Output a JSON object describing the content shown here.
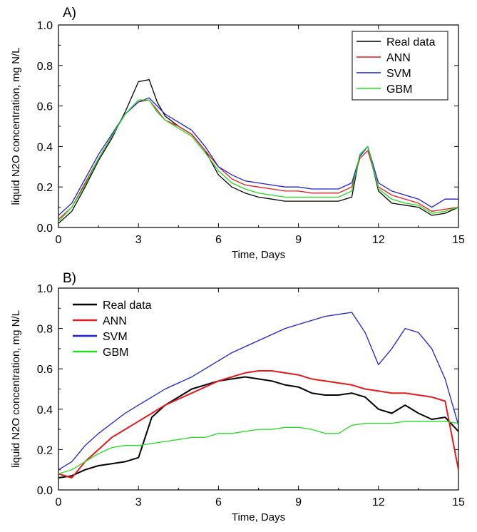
{
  "chart_data": [
    {
      "panel": "A)",
      "type": "line",
      "xlabel": "Time, Days",
      "ylabel": "liquid N2O concentration, mg N/L",
      "xlim": [
        0,
        15
      ],
      "ylim": [
        0,
        1.0
      ],
      "xticks": [
        "0",
        "3",
        "6",
        "9",
        "12",
        "15"
      ],
      "yticks": [
        "0.0",
        "0.2",
        "0.4",
        "0.6",
        "0.8",
        "1.0"
      ],
      "legend_position": "top-right",
      "series": [
        {
          "name": "Real data",
          "color": "#000000",
          "x": [
            0,
            0.5,
            1,
            1.5,
            2,
            2.5,
            3,
            3.4,
            3.7,
            4,
            4.5,
            5,
            5.5,
            6,
            6.5,
            7,
            7.5,
            8,
            8.5,
            9,
            9.5,
            10,
            10.5,
            11,
            11.3,
            11.6,
            12,
            12.5,
            13,
            13.5,
            14,
            14.5,
            15
          ],
          "y": [
            0.02,
            0.08,
            0.2,
            0.33,
            0.44,
            0.57,
            0.72,
            0.73,
            0.62,
            0.55,
            0.5,
            0.46,
            0.38,
            0.26,
            0.2,
            0.17,
            0.15,
            0.14,
            0.13,
            0.13,
            0.13,
            0.13,
            0.13,
            0.15,
            0.36,
            0.4,
            0.18,
            0.12,
            0.11,
            0.1,
            0.06,
            0.07,
            0.1
          ]
        },
        {
          "name": "ANN",
          "color": "#e41a1c",
          "x": [
            0,
            0.5,
            1,
            1.5,
            2,
            2.5,
            3,
            3.4,
            3.7,
            4,
            4.5,
            5,
            5.5,
            6,
            6.5,
            7,
            7.5,
            8,
            8.5,
            9,
            9.5,
            10,
            10.5,
            11,
            11.3,
            11.6,
            12,
            12.5,
            13,
            13.5,
            14,
            14.5,
            15
          ],
          "y": [
            0.04,
            0.1,
            0.22,
            0.34,
            0.45,
            0.56,
            0.62,
            0.63,
            0.58,
            0.53,
            0.5,
            0.46,
            0.38,
            0.3,
            0.24,
            0.21,
            0.2,
            0.19,
            0.18,
            0.18,
            0.17,
            0.17,
            0.17,
            0.2,
            0.34,
            0.38,
            0.2,
            0.16,
            0.14,
            0.12,
            0.08,
            0.09,
            0.1
          ]
        },
        {
          "name": "SVM",
          "color": "#1f1fcf",
          "x": [
            0,
            0.5,
            1,
            1.5,
            2,
            2.5,
            3,
            3.4,
            3.7,
            4,
            4.5,
            5,
            5.5,
            6,
            6.5,
            7,
            7.5,
            8,
            8.5,
            9,
            9.5,
            10,
            10.5,
            11,
            11.3,
            11.6,
            12,
            12.5,
            13,
            13.5,
            14,
            14.5,
            15
          ],
          "y": [
            0.06,
            0.12,
            0.24,
            0.36,
            0.46,
            0.56,
            0.62,
            0.64,
            0.6,
            0.56,
            0.52,
            0.48,
            0.4,
            0.3,
            0.26,
            0.23,
            0.22,
            0.21,
            0.2,
            0.2,
            0.19,
            0.19,
            0.19,
            0.22,
            0.35,
            0.4,
            0.22,
            0.18,
            0.16,
            0.14,
            0.1,
            0.14,
            0.14
          ]
        },
        {
          "name": "GBM",
          "color": "#22dd22",
          "x": [
            0,
            0.5,
            1,
            1.5,
            2,
            2.5,
            3,
            3.4,
            3.7,
            4,
            4.5,
            5,
            5.5,
            6,
            6.5,
            7,
            7.5,
            8,
            8.5,
            9,
            9.5,
            10,
            10.5,
            11,
            11.3,
            11.6,
            12,
            12.5,
            13,
            13.5,
            14,
            14.5,
            15
          ],
          "y": [
            0.03,
            0.1,
            0.21,
            0.34,
            0.45,
            0.56,
            0.63,
            0.63,
            0.57,
            0.53,
            0.49,
            0.45,
            0.37,
            0.28,
            0.22,
            0.19,
            0.17,
            0.16,
            0.15,
            0.15,
            0.15,
            0.15,
            0.15,
            0.18,
            0.36,
            0.4,
            0.19,
            0.14,
            0.12,
            0.11,
            0.07,
            0.08,
            0.1
          ]
        }
      ]
    },
    {
      "panel": "B)",
      "type": "line",
      "xlabel": "Time, Days",
      "ylabel": "liquid N2O concentration, mg N/L",
      "xlim": [
        0,
        15
      ],
      "ylim": [
        0,
        1.0
      ],
      "xticks": [
        "0",
        "3",
        "6",
        "9",
        "12",
        "15"
      ],
      "yticks": [
        "0.0",
        "0.2",
        "0.4",
        "0.6",
        "0.8",
        "1.0"
      ],
      "legend_position": "top-left",
      "series": [
        {
          "name": "Real data",
          "color": "#000000",
          "x": [
            0,
            0.5,
            1,
            1.5,
            2,
            2.5,
            3,
            3.5,
            4,
            4.5,
            5,
            5.5,
            6,
            6.5,
            7,
            7.5,
            8,
            8.5,
            9,
            9.5,
            10,
            10.5,
            11,
            11.5,
            12,
            12.5,
            13,
            13.5,
            14,
            14.5,
            15
          ],
          "y": [
            0.06,
            0.07,
            0.1,
            0.12,
            0.13,
            0.14,
            0.16,
            0.36,
            0.42,
            0.46,
            0.5,
            0.52,
            0.54,
            0.55,
            0.56,
            0.55,
            0.54,
            0.52,
            0.51,
            0.48,
            0.47,
            0.47,
            0.48,
            0.46,
            0.4,
            0.38,
            0.42,
            0.38,
            0.35,
            0.36,
            0.29
          ]
        },
        {
          "name": "ANN",
          "color": "#e41a1c",
          "x": [
            0,
            0.5,
            1,
            1.5,
            2,
            2.5,
            3,
            3.5,
            4,
            4.5,
            5,
            5.5,
            6,
            6.5,
            7,
            7.5,
            8,
            8.5,
            9,
            9.5,
            10,
            10.5,
            11,
            11.5,
            12,
            12.5,
            13,
            13.5,
            14,
            14.5,
            15
          ],
          "y": [
            0.08,
            0.06,
            0.14,
            0.2,
            0.26,
            0.3,
            0.34,
            0.38,
            0.42,
            0.45,
            0.48,
            0.51,
            0.54,
            0.56,
            0.58,
            0.59,
            0.59,
            0.58,
            0.57,
            0.55,
            0.54,
            0.53,
            0.52,
            0.5,
            0.49,
            0.48,
            0.48,
            0.47,
            0.46,
            0.44,
            0.1
          ]
        },
        {
          "name": "SVM",
          "color": "#1f1fcf",
          "x": [
            0,
            0.5,
            1,
            1.5,
            2,
            2.5,
            3,
            3.5,
            4,
            4.5,
            5,
            5.5,
            6,
            6.5,
            7,
            7.5,
            8,
            8.5,
            9,
            9.5,
            10,
            10.5,
            11,
            11.5,
            12,
            12.5,
            13,
            13.5,
            14,
            14.5,
            15
          ],
          "y": [
            0.1,
            0.14,
            0.22,
            0.28,
            0.33,
            0.38,
            0.42,
            0.46,
            0.5,
            0.53,
            0.56,
            0.6,
            0.64,
            0.68,
            0.71,
            0.74,
            0.77,
            0.8,
            0.82,
            0.84,
            0.86,
            0.87,
            0.88,
            0.78,
            0.62,
            0.7,
            0.8,
            0.78,
            0.7,
            0.55,
            0.32
          ]
        },
        {
          "name": "GBM",
          "color": "#22dd22",
          "x": [
            0,
            0.5,
            1,
            1.5,
            2,
            2.5,
            3,
            3.5,
            4,
            4.5,
            5,
            5.5,
            6,
            6.5,
            7,
            7.5,
            8,
            8.5,
            9,
            9.5,
            10,
            10.5,
            11,
            11.5,
            12,
            12.5,
            13,
            13.5,
            14,
            14.5,
            15
          ],
          "y": [
            0.08,
            0.1,
            0.14,
            0.18,
            0.21,
            0.22,
            0.22,
            0.23,
            0.24,
            0.25,
            0.26,
            0.26,
            0.28,
            0.28,
            0.29,
            0.3,
            0.3,
            0.31,
            0.31,
            0.3,
            0.28,
            0.28,
            0.32,
            0.33,
            0.33,
            0.33,
            0.34,
            0.34,
            0.34,
            0.34,
            0.33
          ]
        }
      ]
    }
  ]
}
